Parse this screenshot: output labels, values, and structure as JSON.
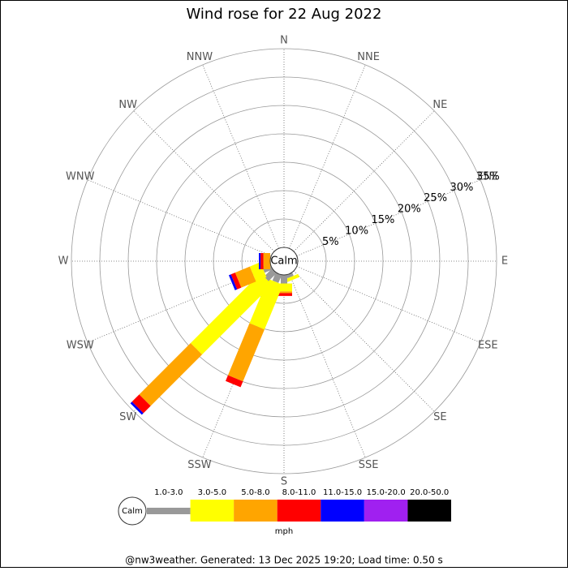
{
  "chart_data": {
    "type": "windrose",
    "title": "Wind rose for 22 Aug 2022",
    "directions": [
      "N",
      "NNE",
      "NE",
      "ENE",
      "E",
      "ESE",
      "SE",
      "SSE",
      "S",
      "SSW",
      "SW",
      "WSW",
      "W",
      "WNW",
      "NW",
      "NNW"
    ],
    "calm_label": "Calm",
    "unit": "mph",
    "rlim": [
      0,
      35
    ],
    "rticks": [
      {
        "value": 5,
        "label": "5%"
      },
      {
        "value": 10,
        "label": "10%"
      },
      {
        "value": 15,
        "label": "15%"
      },
      {
        "value": 20,
        "label": "20%"
      },
      {
        "value": 25,
        "label": "25%"
      },
      {
        "value": 30,
        "label": "30%"
      },
      {
        "value": 35,
        "label": "35%"
      }
    ],
    "series": [
      {
        "name": "1.0-3.0",
        "color": "#999999",
        "values": [
          0,
          0,
          0,
          0,
          0,
          0,
          0,
          0.6,
          1.5,
          1.5,
          2,
          1.5,
          0,
          0,
          0,
          0
        ]
      },
      {
        "name": "3.0-5.0",
        "color": "#ffff00",
        "values": [
          0,
          0,
          0,
          0,
          0,
          0,
          0,
          0.6,
          1.4,
          8.5,
          17.4,
          2,
          0,
          0,
          0,
          0
        ]
      },
      {
        "name": "5.0-8.0",
        "color": "#ffa500",
        "values": [
          0,
          0,
          0,
          0,
          0,
          0,
          0,
          0,
          0.3,
          9.9,
          12.8,
          2.8,
          1.2,
          0,
          0,
          0
        ]
      },
      {
        "name": "8.0-11.0",
        "color": "#ff0000",
        "values": [
          0,
          0,
          0,
          0,
          0,
          0,
          0,
          0,
          0.5,
          1.1,
          1.8,
          0.8,
          0.5,
          0,
          0,
          0
        ]
      },
      {
        "name": "11.0-15.0",
        "color": "#0000ff",
        "values": [
          0,
          0,
          0,
          0,
          0,
          0,
          0,
          0,
          0,
          0,
          0.4,
          0.4,
          0.3,
          0,
          0,
          0
        ]
      },
      {
        "name": "15.0-20.0",
        "color": "#a020f0",
        "values": [
          0,
          0,
          0,
          0,
          0,
          0,
          0,
          0,
          0,
          0,
          0,
          0,
          0,
          0,
          0,
          0
        ]
      },
      {
        "name": "20.0-50.0",
        "color": "#000000",
        "values": [
          0,
          0,
          0,
          0,
          0,
          0,
          0,
          0,
          0,
          0,
          0,
          0,
          0,
          0,
          0,
          0
        ]
      }
    ]
  },
  "footer": "@nw3weather. Generated: 13 Dec 2025 19:20; Load time: 0.50 s"
}
